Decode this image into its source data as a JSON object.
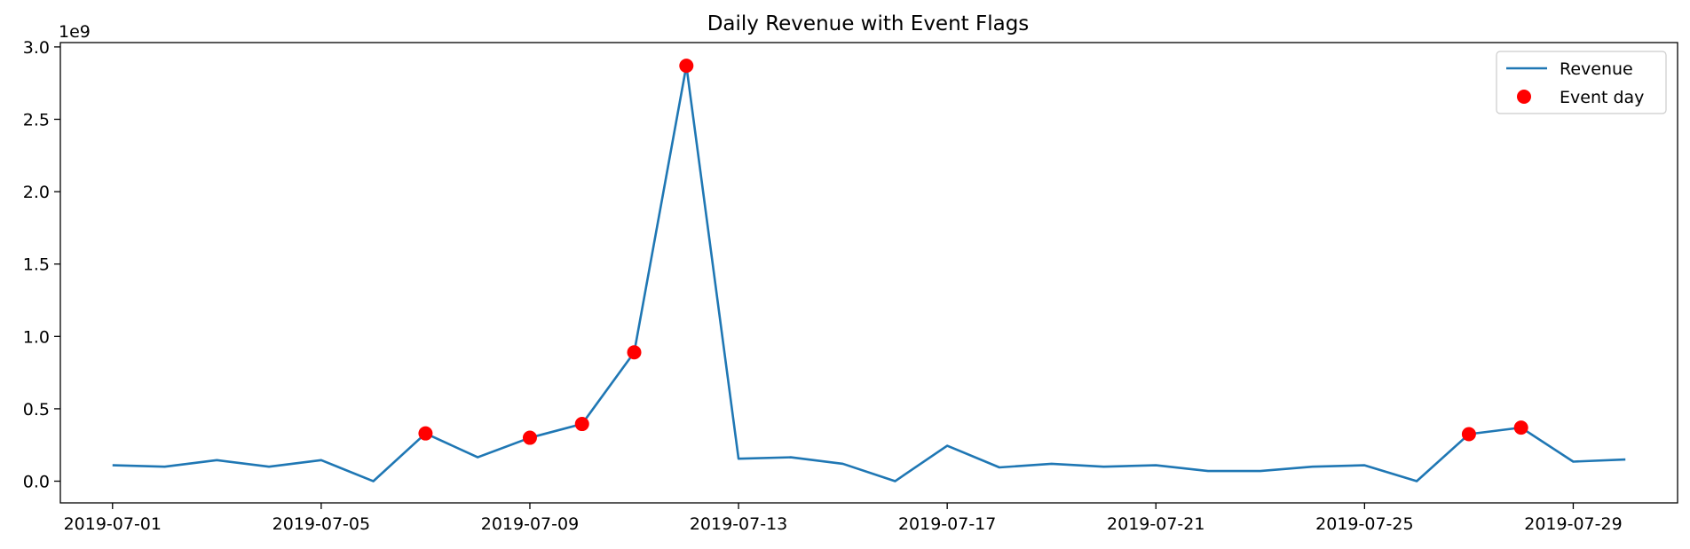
{
  "chart_data": {
    "type": "line",
    "title": "Daily Revenue with Event Flags",
    "xlabel": "",
    "ylabel": "",
    "y_offset_label": "1e9",
    "x_tick_labels": [
      "2019-07-01",
      "2019-07-05",
      "2019-07-09",
      "2019-07-13",
      "2019-07-17",
      "2019-07-21",
      "2019-07-25",
      "2019-07-29"
    ],
    "y_tick_labels": [
      "0.0",
      "0.5",
      "1.0",
      "1.5",
      "2.0",
      "2.5",
      "3.0"
    ],
    "xlim": [
      "2019-06-30",
      "2019-07-31"
    ],
    "ylim": [
      -0.15,
      3.03
    ],
    "grid": false,
    "legend_placement": "top-right",
    "series": [
      {
        "name": "Revenue",
        "kind": "line",
        "color": "#1f77b4",
        "x": [
          "2019-07-01",
          "2019-07-02",
          "2019-07-03",
          "2019-07-04",
          "2019-07-05",
          "2019-07-06",
          "2019-07-07",
          "2019-07-08",
          "2019-07-09",
          "2019-07-10",
          "2019-07-11",
          "2019-07-12",
          "2019-07-13",
          "2019-07-14",
          "2019-07-15",
          "2019-07-16",
          "2019-07-17",
          "2019-07-18",
          "2019-07-19",
          "2019-07-20",
          "2019-07-21",
          "2019-07-22",
          "2019-07-23",
          "2019-07-24",
          "2019-07-25",
          "2019-07-26",
          "2019-07-27",
          "2019-07-28",
          "2019-07-29",
          "2019-07-30"
        ],
        "values": [
          0.11,
          0.1,
          0.145,
          0.1,
          0.145,
          0.0,
          0.33,
          0.165,
          0.3,
          0.395,
          0.89,
          2.87,
          0.155,
          0.165,
          0.12,
          0.0,
          0.245,
          0.095,
          0.12,
          0.1,
          0.11,
          0.07,
          0.07,
          0.1,
          0.11,
          0.0,
          0.325,
          0.37,
          0.135,
          0.15
        ]
      },
      {
        "name": "Event day",
        "kind": "scatter",
        "color": "#ff0000",
        "x": [
          "2019-07-07",
          "2019-07-09",
          "2019-07-10",
          "2019-07-11",
          "2019-07-12",
          "2019-07-27",
          "2019-07-28"
        ],
        "values": [
          0.33,
          0.3,
          0.395,
          0.89,
          2.87,
          0.325,
          0.37
        ]
      }
    ]
  }
}
